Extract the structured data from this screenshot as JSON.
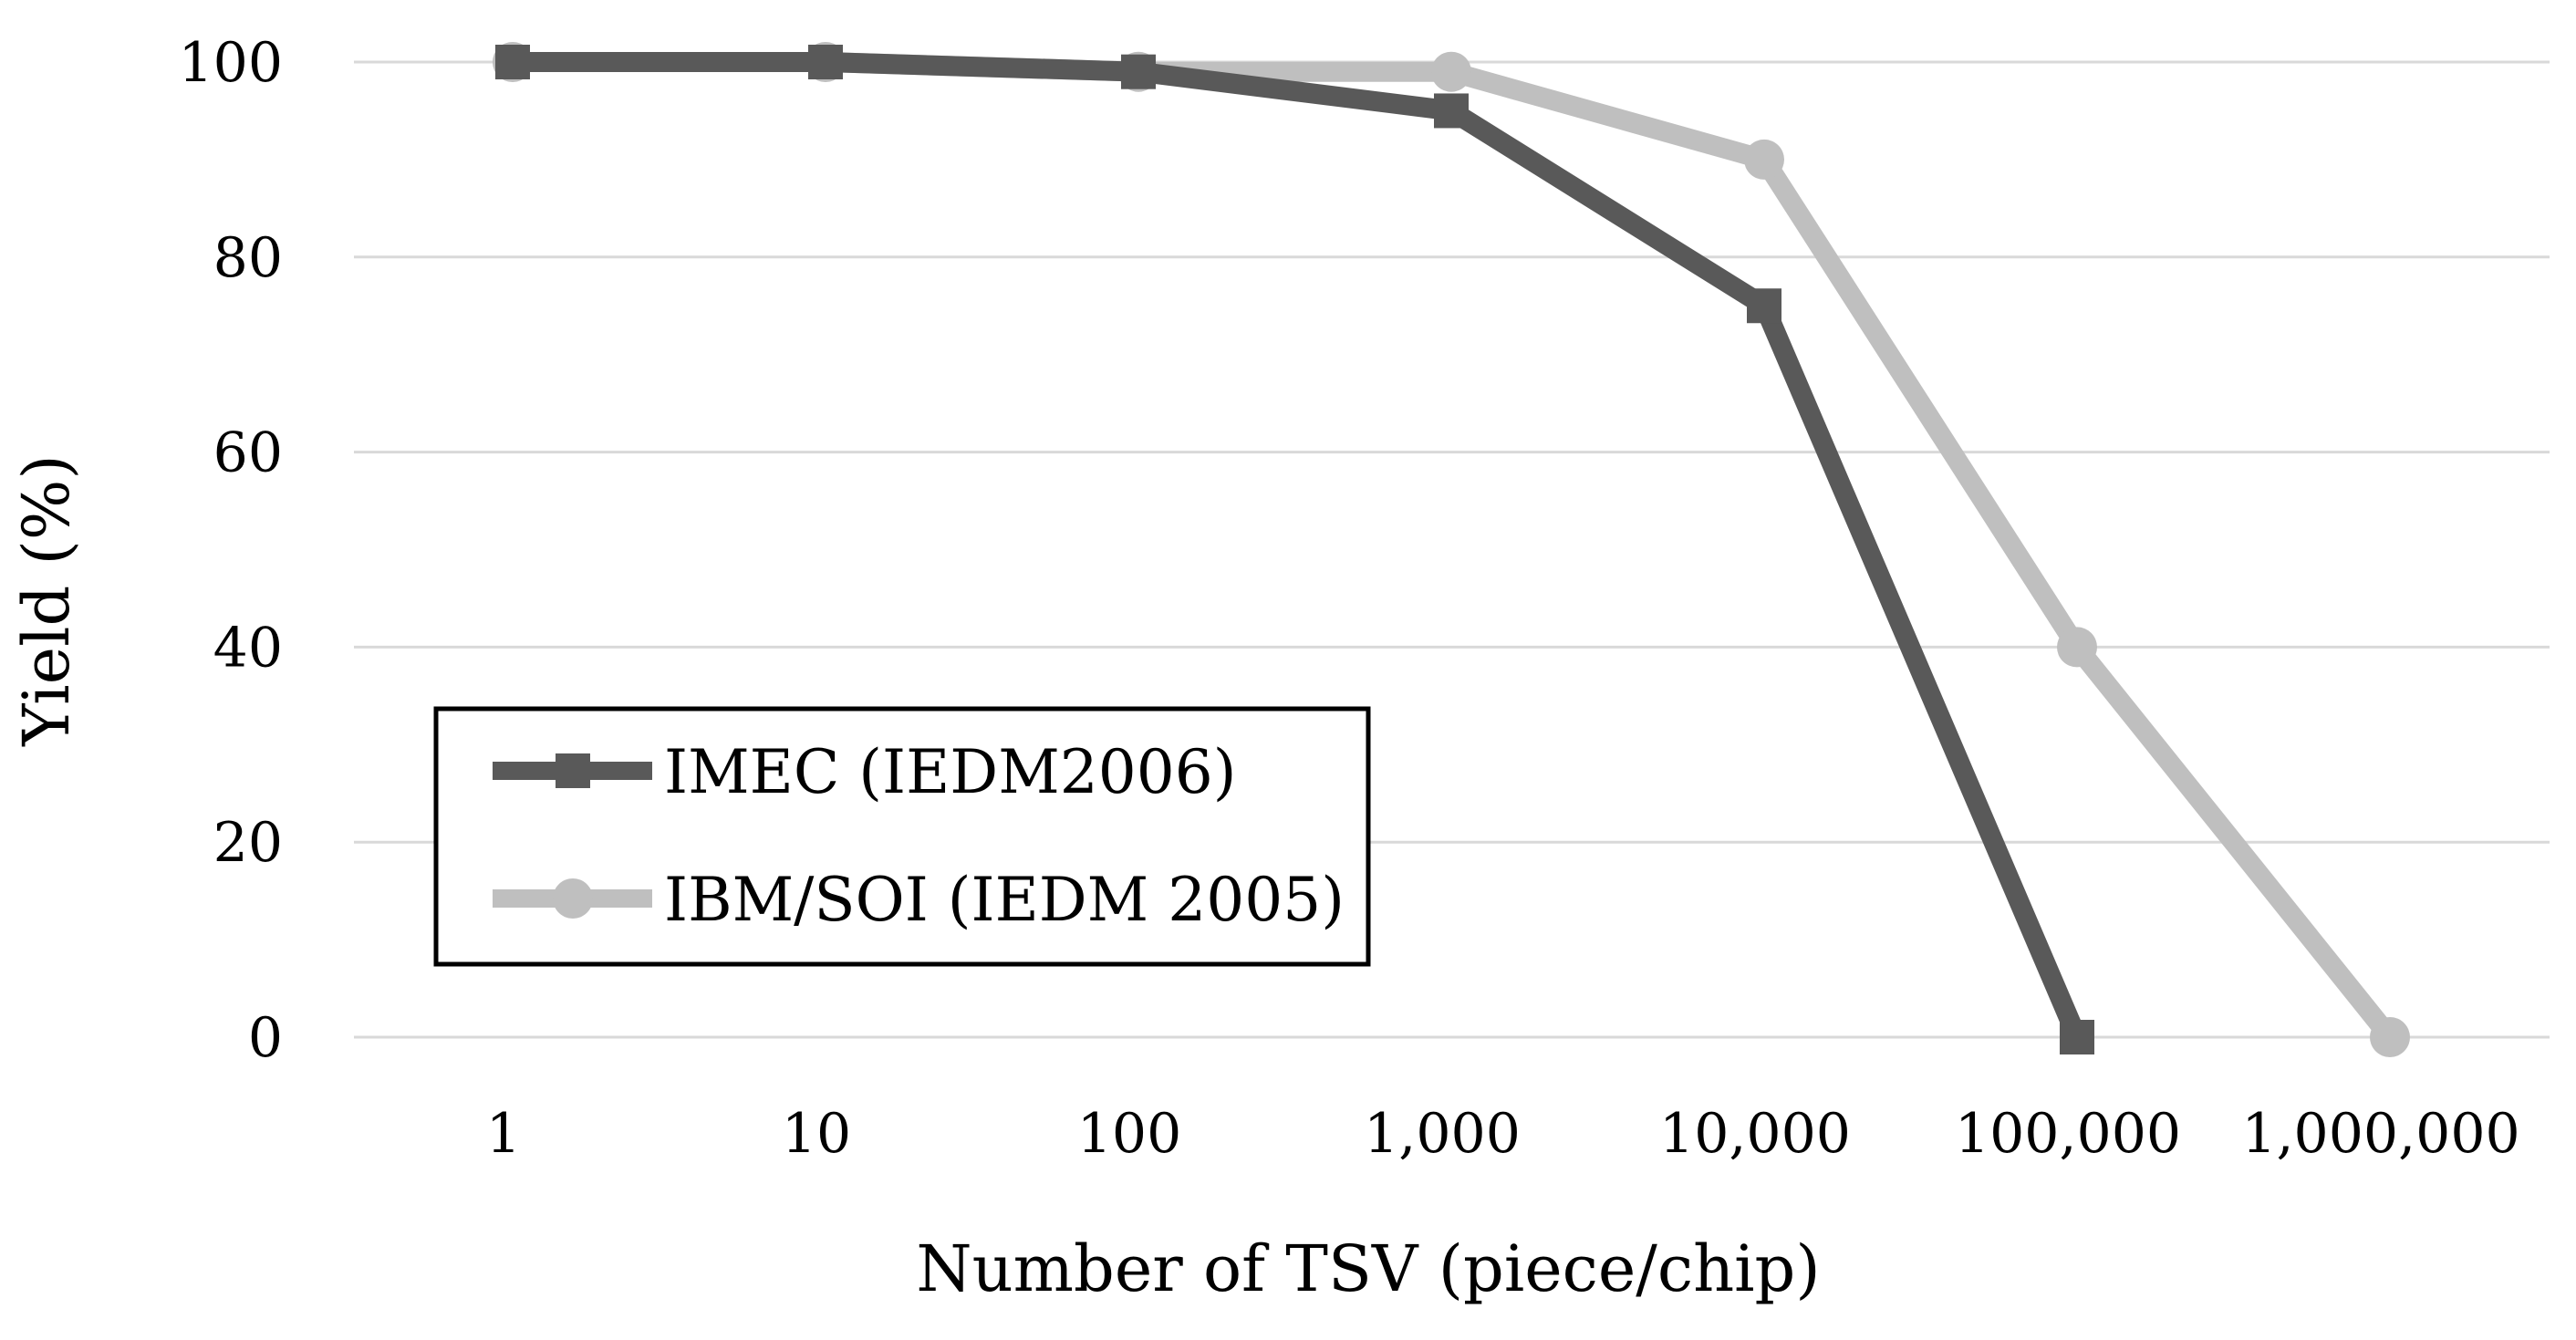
{
  "chart_data": {
    "type": "line",
    "categories": [
      "1",
      "10",
      "100",
      "1,000",
      "10,000",
      "100,000",
      "1,000,000"
    ],
    "xlabel": "Number of TSV (piece/chip)",
    "ylabel": "Yield (%)",
    "ylim": [
      0,
      100
    ],
    "yticks": [
      "0",
      "20",
      "40",
      "60",
      "80",
      "100"
    ],
    "grid": true,
    "legend_position": "bottom-left",
    "series": [
      {
        "name": "IMEC (IEDM2006)",
        "marker": "square",
        "color": "#595959",
        "values": [
          100,
          100,
          99,
          95,
          75,
          0,
          null
        ]
      },
      {
        "name": "IBM/SOI (IEDM 2005)",
        "marker": "circle",
        "color": "#bfbfbf",
        "values": [
          100,
          100,
          99,
          99,
          90,
          40,
          0
        ]
      }
    ]
  }
}
